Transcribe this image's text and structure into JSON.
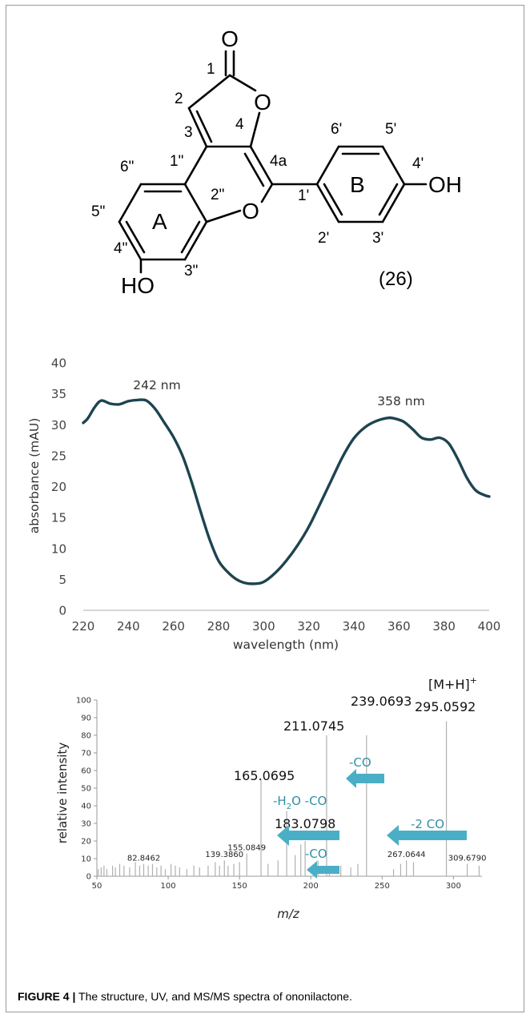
{
  "structure": {
    "ring_labels": [
      "1",
      "2",
      "3",
      "4",
      "4a",
      "6\"",
      "1\"",
      "5\"",
      "A",
      "2\"",
      "4\"",
      "3\"",
      "6'",
      "5'",
      "4'",
      "B",
      "1'",
      "2'",
      "3'"
    ],
    "atoms": {
      "carbonyl_o": "O",
      "ring_o_top": "O",
      "ring_o_mid": "O",
      "hydroxyl_a": "HO",
      "hydroxyl_b": "OH"
    },
    "compound_number": "(26)"
  },
  "chart_data": [
    {
      "type": "line",
      "title": "",
      "xlabel": "wavelength (nm)",
      "ylabel": "absorbance (mAU)",
      "xlim": [
        220,
        400
      ],
      "ylim": [
        0,
        40
      ],
      "xticks": [
        220,
        240,
        260,
        280,
        300,
        320,
        340,
        360,
        380,
        400
      ],
      "yticks": [
        0,
        5,
        10,
        15,
        20,
        25,
        30,
        35,
        40
      ],
      "grid": false,
      "color": "#1d4450",
      "series": [
        {
          "x": [
            220,
            222,
            225,
            228,
            232,
            236,
            240,
            244,
            248,
            252,
            256,
            260,
            264,
            268,
            272,
            276,
            280,
            284,
            288,
            292,
            296,
            300,
            305,
            310,
            315,
            320,
            325,
            330,
            335,
            340,
            345,
            350,
            355,
            358,
            362,
            366,
            370,
            374,
            378,
            382,
            386,
            390,
            394,
            398,
            400
          ],
          "y": [
            30.3,
            31,
            32.8,
            33.9,
            33.4,
            33.3,
            33.8,
            34,
            33.9,
            32.5,
            30.3,
            28,
            25,
            20.8,
            16,
            11.5,
            8,
            6.2,
            5,
            4.4,
            4.3,
            4.6,
            6,
            8,
            10.5,
            13.5,
            17.2,
            21,
            24.8,
            27.8,
            29.6,
            30.6,
            31.1,
            31,
            30.5,
            29.3,
            27.9,
            27.6,
            27.9,
            27,
            24.5,
            21.5,
            19.4,
            18.6,
            18.4
          ]
        }
      ],
      "annotations": [
        "242 nm",
        "358 nm"
      ]
    },
    {
      "type": "bar",
      "title": "",
      "xlabel": "m/z",
      "ylabel": "relative intensity",
      "xlim": [
        50,
        320
      ],
      "ylim": [
        0,
        100
      ],
      "xticks": [
        50,
        100,
        150,
        200,
        250,
        300
      ],
      "yticks": [
        0,
        10,
        20,
        30,
        40,
        50,
        60,
        70,
        80,
        90,
        100
      ],
      "grid": false,
      "color": "#b0b0b0",
      "peaks": [
        {
          "mz": 51,
          "intensity": 4
        },
        {
          "mz": 53,
          "intensity": 5
        },
        {
          "mz": 55,
          "intensity": 6
        },
        {
          "mz": 57,
          "intensity": 4
        },
        {
          "mz": 61,
          "intensity": 6
        },
        {
          "mz": 63,
          "intensity": 5
        },
        {
          "mz": 66,
          "intensity": 7
        },
        {
          "mz": 69,
          "intensity": 6
        },
        {
          "mz": 73,
          "intensity": 5
        },
        {
          "mz": 77,
          "intensity": 8
        },
        {
          "mz": 80,
          "intensity": 6
        },
        {
          "mz": 82.8462,
          "intensity": 7
        },
        {
          "mz": 86,
          "intensity": 6
        },
        {
          "mz": 89,
          "intensity": 7
        },
        {
          "mz": 92,
          "intensity": 5
        },
        {
          "mz": 95,
          "intensity": 6
        },
        {
          "mz": 98,
          "intensity": 4
        },
        {
          "mz": 102,
          "intensity": 7
        },
        {
          "mz": 105,
          "intensity": 6
        },
        {
          "mz": 108,
          "intensity": 5
        },
        {
          "mz": 113,
          "intensity": 4
        },
        {
          "mz": 118,
          "intensity": 6
        },
        {
          "mz": 122,
          "intensity": 5
        },
        {
          "mz": 128,
          "intensity": 6
        },
        {
          "mz": 133,
          "intensity": 8
        },
        {
          "mz": 136,
          "intensity": 6
        },
        {
          "mz": 139.386,
          "intensity": 9
        },
        {
          "mz": 142,
          "intensity": 6
        },
        {
          "mz": 146,
          "intensity": 7
        },
        {
          "mz": 150,
          "intensity": 8
        },
        {
          "mz": 155.0849,
          "intensity": 13
        },
        {
          "mz": 165.0695,
          "intensity": 55
        },
        {
          "mz": 170,
          "intensity": 7
        },
        {
          "mz": 177,
          "intensity": 9
        },
        {
          "mz": 183.0798,
          "intensity": 37
        },
        {
          "mz": 189,
          "intensity": 12
        },
        {
          "mz": 193,
          "intensity": 18
        },
        {
          "mz": 196,
          "intensity": 20
        },
        {
          "mz": 205,
          "intensity": 9
        },
        {
          "mz": 211.0745,
          "intensity": 80
        },
        {
          "mz": 213,
          "intensity": 6
        },
        {
          "mz": 221,
          "intensity": 6
        },
        {
          "mz": 228,
          "intensity": 5
        },
        {
          "mz": 233,
          "intensity": 7
        },
        {
          "mz": 239.0693,
          "intensity": 80
        },
        {
          "mz": 258,
          "intensity": 4
        },
        {
          "mz": 263,
          "intensity": 7
        },
        {
          "mz": 267.0644,
          "intensity": 9
        },
        {
          "mz": 272,
          "intensity": 8
        },
        {
          "mz": 295.0592,
          "intensity": 88
        },
        {
          "mz": 309.679,
          "intensity": 7
        },
        {
          "mz": 318,
          "intensity": 6
        }
      ],
      "peak_labels": [
        {
          "text": "82.8462",
          "mz": 82.8462
        },
        {
          "text": "139.3860",
          "mz": 139.386
        },
        {
          "text": "155.0849",
          "mz": 155.0849
        },
        {
          "text": "267.0644",
          "mz": 267.0644
        },
        {
          "text": "309.6790",
          "mz": 309.679
        }
      ],
      "big_labels": [
        "239.0693",
        "[M+H]",
        "+",
        "295.0592",
        "211.0745",
        "165.0695",
        "183.0798"
      ],
      "arrow_labels": {
        "loss_co_top": "-CO",
        "loss_h2o_co": "-H",
        "h2o_sub": "2",
        "h2o_rest": "O -CO",
        "loss_2co": "-2 CO",
        "loss_co_bottom": "-CO"
      },
      "arrow_color": "#4aafc6"
    }
  ],
  "caption": {
    "label": "FIGURE 4 |",
    "text": " The structure, UV, and MS/MS spectra of ononilactone."
  }
}
